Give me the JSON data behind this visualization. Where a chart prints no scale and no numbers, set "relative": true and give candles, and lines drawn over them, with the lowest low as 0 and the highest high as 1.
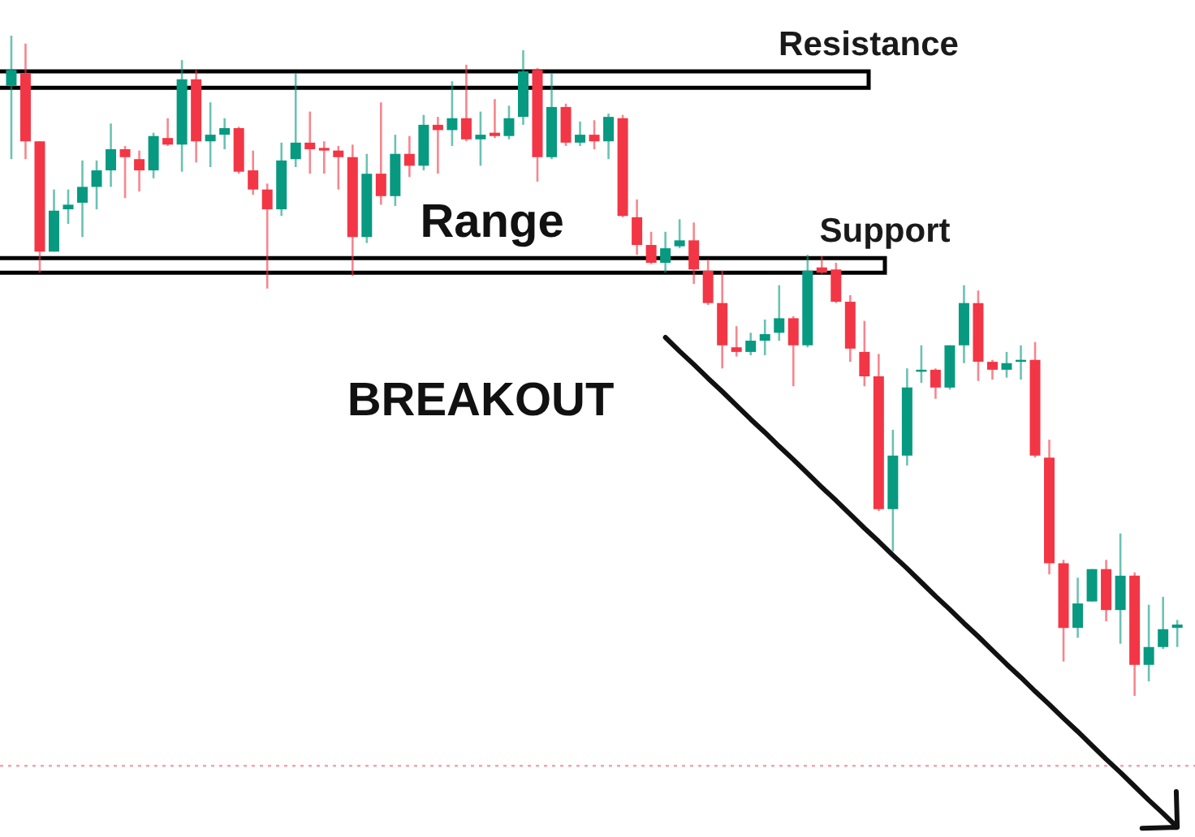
{
  "chart_data": {
    "type": "candlestick",
    "relative": true,
    "categories": [
      null,
      null,
      null,
      null,
      null,
      null,
      null,
      null,
      null,
      null,
      null,
      null,
      null,
      null,
      null,
      null,
      null,
      null,
      null,
      null,
      null,
      null,
      null,
      null,
      null,
      null,
      null,
      null,
      null,
      null,
      null,
      null,
      null,
      null,
      null,
      null,
      null,
      null,
      null,
      null,
      null,
      null,
      null,
      null,
      null,
      null,
      null,
      null,
      null,
      null,
      null,
      null,
      null,
      null,
      null,
      null,
      null,
      null,
      null,
      null,
      null,
      null,
      null,
      null,
      null,
      null,
      null,
      null,
      null,
      null,
      null,
      null,
      null,
      null,
      null,
      null,
      null,
      null,
      null,
      null,
      null,
      null,
      null
    ],
    "ohlc": [
      [
        0.924,
        1.0,
        0.813,
        0.948
      ],
      [
        0.943,
        0.988,
        0.813,
        0.84
      ],
      [
        0.84,
        0.84,
        0.641,
        0.673
      ],
      [
        0.673,
        0.767,
        0.673,
        0.735
      ],
      [
        0.737,
        0.767,
        0.715,
        0.744
      ],
      [
        0.747,
        0.811,
        0.695,
        0.771
      ],
      [
        0.771,
        0.811,
        0.737,
        0.796
      ],
      [
        0.796,
        0.867,
        0.771,
        0.828
      ],
      [
        0.828,
        0.833,
        0.754,
        0.816
      ],
      [
        0.813,
        0.826,
        0.764,
        0.796
      ],
      [
        0.796,
        0.853,
        0.784,
        0.848
      ],
      [
        0.845,
        0.875,
        0.833,
        0.835
      ],
      [
        0.835,
        0.963,
        0.794,
        0.934
      ],
      [
        0.934,
        0.948,
        0.808,
        0.84
      ],
      [
        0.84,
        0.899,
        0.801,
        0.85
      ],
      [
        0.85,
        0.875,
        0.828,
        0.86
      ],
      [
        0.86,
        0.862,
        0.791,
        0.794
      ],
      [
        0.796,
        0.826,
        0.759,
        0.767
      ],
      [
        0.767,
        0.776,
        0.617,
        0.737
      ],
      [
        0.737,
        0.838,
        0.727,
        0.811
      ],
      [
        0.813,
        0.943,
        0.801,
        0.838
      ],
      [
        0.838,
        0.885,
        0.791,
        0.828
      ],
      [
        0.83,
        0.84,
        0.791,
        0.826
      ],
      [
        0.826,
        0.833,
        0.767,
        0.816
      ],
      [
        0.816,
        0.835,
        0.636,
        0.695
      ],
      [
        0.695,
        0.821,
        0.686,
        0.791
      ],
      [
        0.791,
        0.899,
        0.744,
        0.757
      ],
      [
        0.757,
        0.85,
        0.742,
        0.821
      ],
      [
        0.821,
        0.848,
        0.786,
        0.803
      ],
      [
        0.803,
        0.88,
        0.796,
        0.865
      ],
      [
        0.865,
        0.877,
        0.791,
        0.857
      ],
      [
        0.857,
        0.931,
        0.833,
        0.875
      ],
      [
        0.875,
        0.956,
        0.84,
        0.843
      ],
      [
        0.843,
        0.885,
        0.803,
        0.85
      ],
      [
        0.853,
        0.904,
        0.845,
        0.848
      ],
      [
        0.848,
        0.894,
        0.843,
        0.875
      ],
      [
        0.877,
        0.978,
        0.865,
        0.946
      ],
      [
        0.948,
        0.951,
        0.779,
        0.816
      ],
      [
        0.816,
        0.943,
        0.813,
        0.892
      ],
      [
        0.892,
        0.897,
        0.833,
        0.838
      ],
      [
        0.838,
        0.87,
        0.833,
        0.85
      ],
      [
        0.85,
        0.872,
        0.828,
        0.84
      ],
      [
        0.84,
        0.882,
        0.813,
        0.877
      ],
      [
        0.875,
        0.88,
        0.725,
        0.727
      ],
      [
        0.725,
        0.752,
        0.668,
        0.683
      ],
      [
        0.683,
        0.703,
        0.654,
        0.656
      ],
      [
        0.656,
        0.703,
        0.641,
        0.678
      ],
      [
        0.681,
        0.722,
        0.678,
        0.69
      ],
      [
        0.69,
        0.717,
        0.624,
        0.646
      ],
      [
        0.644,
        0.661,
        0.592,
        0.595
      ],
      [
        0.595,
        0.644,
        0.496,
        0.531
      ],
      [
        0.528,
        0.56,
        0.514,
        0.521
      ],
      [
        0.521,
        0.55,
        0.516,
        0.538
      ],
      [
        0.538,
        0.57,
        0.516,
        0.548
      ],
      [
        0.55,
        0.622,
        0.538,
        0.572
      ],
      [
        0.572,
        0.575,
        0.469,
        0.531
      ],
      [
        0.531,
        0.668,
        0.528,
        0.644
      ],
      [
        0.649,
        0.666,
        0.639,
        0.641
      ],
      [
        0.646,
        0.656,
        0.595,
        0.597
      ],
      [
        0.597,
        0.607,
        0.506,
        0.526
      ],
      [
        0.521,
        0.568,
        0.469,
        0.484
      ],
      [
        0.484,
        0.518,
        0.28,
        0.283
      ],
      [
        0.283,
        0.403,
        0.219,
        0.364
      ],
      [
        0.364,
        0.496,
        0.349,
        0.467
      ],
      [
        0.491,
        0.531,
        0.474,
        0.494
      ],
      [
        0.494,
        0.496,
        0.45,
        0.467
      ],
      [
        0.467,
        0.531,
        0.464,
        0.531
      ],
      [
        0.531,
        0.622,
        0.504,
        0.595
      ],
      [
        0.595,
        0.614,
        0.477,
        0.506
      ],
      [
        0.506,
        0.509,
        0.479,
        0.494
      ],
      [
        0.494,
        0.521,
        0.482,
        0.504
      ],
      [
        0.506,
        0.531,
        0.479,
        0.509
      ],
      [
        0.509,
        0.536,
        0.361,
        0.364
      ],
      [
        0.361,
        0.388,
        0.184,
        0.201
      ],
      [
        0.201,
        0.206,
        0.052,
        0.103
      ],
      [
        0.103,
        0.179,
        0.088,
        0.14
      ],
      [
        0.143,
        0.192,
        0.143,
        0.192
      ],
      [
        0.192,
        0.206,
        0.113,
        0.13
      ],
      [
        0.13,
        0.246,
        0.079,
        0.182
      ],
      [
        0.182,
        0.187,
        0.0,
        0.047
      ],
      [
        0.047,
        0.138,
        0.022,
        0.074
      ],
      [
        0.074,
        0.15,
        0.071,
        0.101
      ],
      [
        0.103,
        0.115,
        0.074,
        0.108
      ]
    ],
    "colors": [
      "#089981",
      "#f23645",
      "#f23645",
      "#089981",
      "#089981",
      "#089981",
      "#089981",
      "#089981",
      "#f23645",
      "#f23645",
      "#089981",
      "#f23645",
      "#089981",
      "#f23645",
      "#089981",
      "#089981",
      "#f23645",
      "#f23645",
      "#f23645",
      "#089981",
      "#089981",
      "#f23645",
      "#f23645",
      "#f23645",
      "#f23645",
      "#089981",
      "#f23645",
      "#089981",
      "#f23645",
      "#089981",
      "#f23645",
      "#089981",
      "#f23645",
      "#089981",
      "#f23645",
      "#089981",
      "#089981",
      "#f23645",
      "#089981",
      "#f23645",
      "#089981",
      "#f23645",
      "#089981",
      "#f23645",
      "#f23645",
      "#f23645",
      "#089981",
      "#089981",
      "#f23645",
      "#f23645",
      "#f23645",
      "#f23645",
      "#089981",
      "#089981",
      "#089981",
      "#f23645",
      "#089981",
      "#f23645",
      "#f23645",
      "#f23645",
      "#f23645",
      "#f23645",
      "#089981",
      "#089981",
      "#089981",
      "#f23645",
      "#089981",
      "#089981",
      "#f23645",
      "#f23645",
      "#089981",
      "#089981",
      "#f23645",
      "#f23645",
      "#f23645",
      "#089981",
      "#089981",
      "#f23645",
      "#089981",
      "#f23645",
      "#089981",
      "#089981",
      "#089981"
    ],
    "series": [
      {
        "type": "line",
        "color": "#111111",
        "values": [
          null,
          null,
          null,
          null,
          null,
          null,
          null,
          null,
          null,
          null,
          null,
          null,
          null,
          null,
          null,
          null,
          null,
          null,
          null,
          null,
          null,
          null,
          null,
          null,
          null,
          null,
          null,
          null,
          null,
          null,
          null,
          null,
          null,
          null,
          null,
          null,
          null,
          null,
          null,
          null,
          null,
          null,
          null,
          null,
          null,
          null,
          0.543,
          0.522,
          0.502,
          0.481,
          0.461,
          0.44,
          0.419,
          0.399,
          0.378,
          0.358,
          0.337,
          0.316,
          0.296,
          0.275,
          0.254,
          0.234,
          0.213,
          0.193,
          0.172,
          0.151,
          0.131,
          0.11,
          0.09,
          0.069,
          0.048,
          0.028,
          0.007,
          -0.013,
          -0.034,
          -0.054,
          -0.075,
          -0.096,
          -0.116,
          -0.137,
          -0.158,
          -0.178,
          -0.199
        ]
      }
    ],
    "bands": [
      {
        "axis": "y",
        "from": 0.921,
        "to": 0.946,
        "label": "Resistance",
        "color": "#ffffff"
      },
      {
        "axis": "y",
        "from": 0.641,
        "to": 0.663,
        "label": "Support",
        "color": "#ffffff"
      }
    ],
    "ref_lines": [
      {
        "axis": "y",
        "value": -0.106,
        "color": "#f4a3ab",
        "line_style": "dotted"
      }
    ],
    "annotations": [
      "Range",
      "BREAKOUT"
    ]
  }
}
